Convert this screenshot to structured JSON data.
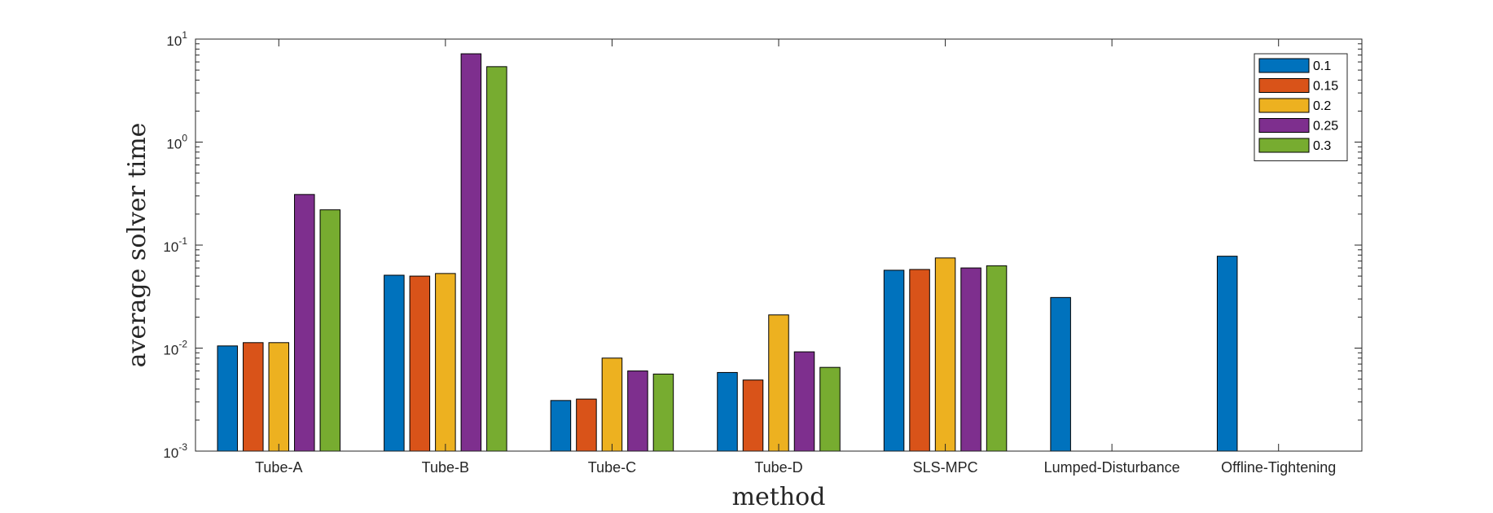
{
  "chart_data": {
    "type": "bar",
    "title": "",
    "xlabel": "method",
    "ylabel": "average solver time",
    "yscale": "log",
    "ylim": [
      0.001,
      10
    ],
    "yticks": [
      {
        "value": 0.001,
        "base": "10",
        "exp": "-3"
      },
      {
        "value": 0.01,
        "base": "10",
        "exp": "-2"
      },
      {
        "value": 0.1,
        "base": "10",
        "exp": "-1"
      },
      {
        "value": 1,
        "base": "10",
        "exp": "0"
      },
      {
        "value": 10,
        "base": "10",
        "exp": "1"
      }
    ],
    "grid": false,
    "legend_position": "top-right",
    "categories": [
      "Tube-A",
      "Tube-B",
      "Tube-C",
      "Tube-D",
      "SLS-MPC",
      "Lumped-Disturbance",
      "Offline-Tightening"
    ],
    "series": [
      {
        "name": "0.1",
        "color": "#0072BD",
        "values": [
          0.0105,
          0.051,
          0.0031,
          0.0058,
          0.057,
          0.031,
          0.078
        ]
      },
      {
        "name": "0.15",
        "color": "#D95319",
        "values": [
          0.0113,
          0.05,
          0.0032,
          0.0049,
          0.058,
          null,
          null
        ]
      },
      {
        "name": "0.2",
        "color": "#EDB120",
        "values": [
          0.0113,
          0.053,
          0.008,
          0.021,
          0.075,
          null,
          null
        ]
      },
      {
        "name": "0.25",
        "color": "#7E2F8E",
        "values": [
          0.31,
          7.2,
          0.006,
          0.0092,
          0.06,
          null,
          null
        ]
      },
      {
        "name": "0.3",
        "color": "#77AC30",
        "values": [
          0.22,
          5.4,
          0.0056,
          0.0065,
          0.063,
          null,
          null
        ]
      }
    ]
  }
}
